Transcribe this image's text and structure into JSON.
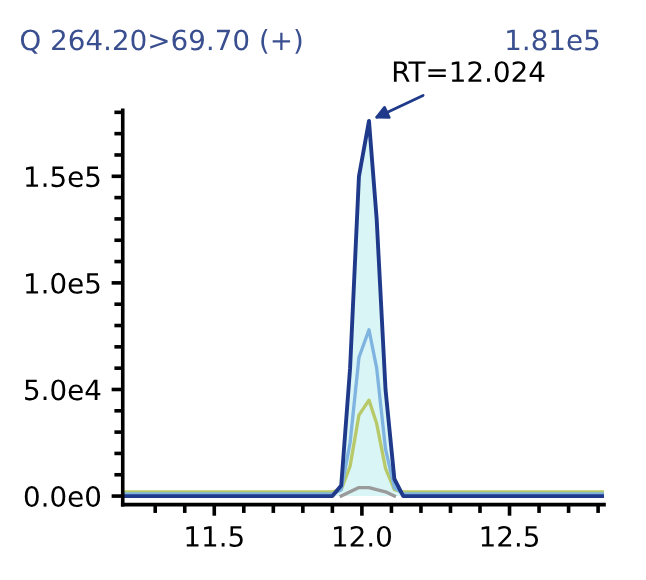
{
  "chart_data": {
    "type": "line",
    "title": "Q 264.20>69.70 (+)",
    "annotations": [
      "1.81e5",
      {
        "text": "RT=12.024",
        "x": 12.024,
        "y": 176000
      }
    ],
    "x": [
      11.19,
      11.9,
      11.93,
      11.96,
      11.99,
      12.024,
      12.05,
      12.08,
      12.11,
      12.14,
      12.82
    ],
    "series": [
      {
        "type": "area",
        "color": "#1f3a8a",
        "values": [
          0,
          0,
          5000,
          60000,
          150000,
          176000,
          130000,
          50000,
          8000,
          0,
          0
        ]
      },
      {
        "color": "#7fb4e0",
        "values": [
          1000,
          1000,
          3000,
          25000,
          65000,
          78000,
          60000,
          22000,
          4000,
          1000,
          1000
        ]
      },
      {
        "color": "#b8c96a",
        "values": [
          2000,
          2000,
          3000,
          14000,
          38000,
          45000,
          34000,
          13000,
          3000,
          2000,
          2000
        ]
      },
      {
        "color": "#9a9a9a",
        "values": [
          null,
          null,
          0,
          2000,
          4000,
          4000,
          3000,
          2000,
          0,
          null,
          null
        ]
      }
    ],
    "xlim": [
      11.19,
      12.82
    ],
    "ylim": [
      -4000,
      181000
    ],
    "xticks": [
      11.5,
      {
        "value": 12.0,
        "label": "12.0"
      },
      12.5,
      {
        "value": 11.3,
        "label": null
      },
      {
        "value": 11.4,
        "label": null
      },
      {
        "value": 11.6,
        "label": null
      },
      {
        "value": 11.7,
        "label": null
      },
      {
        "value": 11.8,
        "label": null
      },
      {
        "value": 11.9,
        "label": null
      },
      {
        "value": 12.1,
        "label": null
      },
      {
        "value": 12.2,
        "label": null
      },
      {
        "value": 12.3,
        "label": null
      },
      {
        "value": 12.4,
        "label": null
      },
      {
        "value": 12.6,
        "label": null
      },
      {
        "value": 12.7,
        "label": null
      },
      {
        "value": 12.8,
        "label": null
      }
    ],
    "yticks": [
      {
        "value": 0,
        "label": "0.0e0"
      },
      {
        "value": 50000,
        "label": "5.0e4"
      },
      {
        "value": 100000,
        "label": "1.0e5"
      },
      {
        "value": 150000,
        "label": "1.5e5"
      },
      {
        "value": 10000,
        "label": null
      },
      {
        "value": 20000,
        "label": null
      },
      {
        "value": 30000,
        "label": null
      },
      {
        "value": 40000,
        "label": null
      },
      {
        "value": 60000,
        "label": null
      },
      {
        "value": 70000,
        "label": null
      },
      {
        "value": 80000,
        "label": null
      },
      {
        "value": 90000,
        "label": null
      },
      {
        "value": 110000,
        "label": null
      },
      {
        "value": 120000,
        "label": null
      },
      {
        "value": 130000,
        "label": null
      },
      {
        "value": 140000,
        "label": null
      },
      {
        "value": 160000,
        "label": null
      },
      {
        "value": 170000,
        "label": null
      },
      {
        "value": 180000,
        "label": null
      }
    ],
    "grid": false,
    "legend": false
  }
}
